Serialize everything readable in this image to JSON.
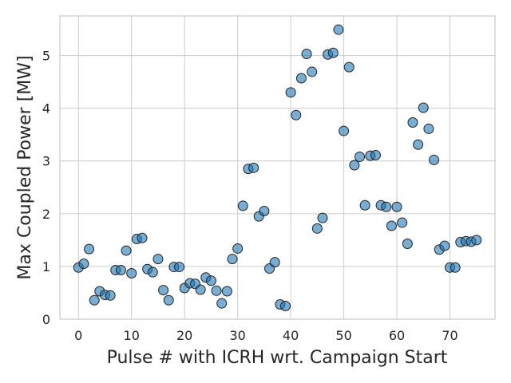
{
  "chart_data": {
    "type": "scatter",
    "xlabel": "Pulse # with ICRH wrt. Campaign Start",
    "ylabel": "Max Coupled Power [MW]",
    "xlim": [
      -3.5,
      78.5
    ],
    "ylim": [
      0,
      5.75
    ],
    "xticks": [
      0,
      10,
      20,
      30,
      40,
      50,
      60,
      70
    ],
    "yticks": [
      0,
      1,
      2,
      3,
      4,
      5
    ],
    "grid": true,
    "marker_color": "#1f77b4",
    "points": [
      {
        "x": 0,
        "y": 0.98
      },
      {
        "x": 1,
        "y": 1.05
      },
      {
        "x": 2,
        "y": 1.33
      },
      {
        "x": 3,
        "y": 0.36
      },
      {
        "x": 4,
        "y": 0.53
      },
      {
        "x": 5,
        "y": 0.46
      },
      {
        "x": 6,
        "y": 0.45
      },
      {
        "x": 7,
        "y": 0.93
      },
      {
        "x": 8,
        "y": 0.93
      },
      {
        "x": 9,
        "y": 1.3
      },
      {
        "x": 10,
        "y": 0.87
      },
      {
        "x": 11,
        "y": 1.52
      },
      {
        "x": 12,
        "y": 1.54
      },
      {
        "x": 13,
        "y": 0.95
      },
      {
        "x": 14,
        "y": 0.89
      },
      {
        "x": 15,
        "y": 1.14
      },
      {
        "x": 16,
        "y": 0.55
      },
      {
        "x": 17,
        "y": 0.36
      },
      {
        "x": 18,
        "y": 0.99
      },
      {
        "x": 19,
        "y": 0.99
      },
      {
        "x": 20,
        "y": 0.59
      },
      {
        "x": 21,
        "y": 0.68
      },
      {
        "x": 22,
        "y": 0.67
      },
      {
        "x": 23,
        "y": 0.56
      },
      {
        "x": 24,
        "y": 0.79
      },
      {
        "x": 25,
        "y": 0.73
      },
      {
        "x": 26,
        "y": 0.54
      },
      {
        "x": 27,
        "y": 0.3
      },
      {
        "x": 28,
        "y": 0.53
      },
      {
        "x": 29,
        "y": 1.14
      },
      {
        "x": 30,
        "y": 1.34
      },
      {
        "x": 31,
        "y": 2.15
      },
      {
        "x": 32,
        "y": 2.85
      },
      {
        "x": 33,
        "y": 2.87
      },
      {
        "x": 34,
        "y": 1.95
      },
      {
        "x": 35,
        "y": 2.05
      },
      {
        "x": 36,
        "y": 0.96
      },
      {
        "x": 37,
        "y": 1.08
      },
      {
        "x": 38,
        "y": 0.28
      },
      {
        "x": 39,
        "y": 0.25
      },
      {
        "x": 40,
        "y": 4.3
      },
      {
        "x": 41,
        "y": 3.87
      },
      {
        "x": 42,
        "y": 4.57
      },
      {
        "x": 43,
        "y": 5.03
      },
      {
        "x": 44,
        "y": 4.69
      },
      {
        "x": 45,
        "y": 1.72
      },
      {
        "x": 46,
        "y": 1.92
      },
      {
        "x": 47,
        "y": 5.02
      },
      {
        "x": 48,
        "y": 5.05
      },
      {
        "x": 49,
        "y": 5.49
      },
      {
        "x": 50,
        "y": 3.57
      },
      {
        "x": 51,
        "y": 4.78
      },
      {
        "x": 52,
        "y": 2.92
      },
      {
        "x": 53,
        "y": 3.08
      },
      {
        "x": 54,
        "y": 2.16
      },
      {
        "x": 55,
        "y": 3.1
      },
      {
        "x": 56,
        "y": 3.11
      },
      {
        "x": 57,
        "y": 2.16
      },
      {
        "x": 58,
        "y": 2.13
      },
      {
        "x": 59,
        "y": 1.77
      },
      {
        "x": 60,
        "y": 2.13
      },
      {
        "x": 61,
        "y": 1.83
      },
      {
        "x": 62,
        "y": 1.43
      },
      {
        "x": 63,
        "y": 3.73
      },
      {
        "x": 64,
        "y": 3.31
      },
      {
        "x": 65,
        "y": 4.01
      },
      {
        "x": 66,
        "y": 3.61
      },
      {
        "x": 67,
        "y": 3.02
      },
      {
        "x": 68,
        "y": 1.32
      },
      {
        "x": 69,
        "y": 1.39
      },
      {
        "x": 70,
        "y": 0.98
      },
      {
        "x": 71,
        "y": 0.98
      },
      {
        "x": 72,
        "y": 1.46
      },
      {
        "x": 73,
        "y": 1.48
      },
      {
        "x": 74,
        "y": 1.47
      },
      {
        "x": 75,
        "y": 1.5
      }
    ]
  }
}
